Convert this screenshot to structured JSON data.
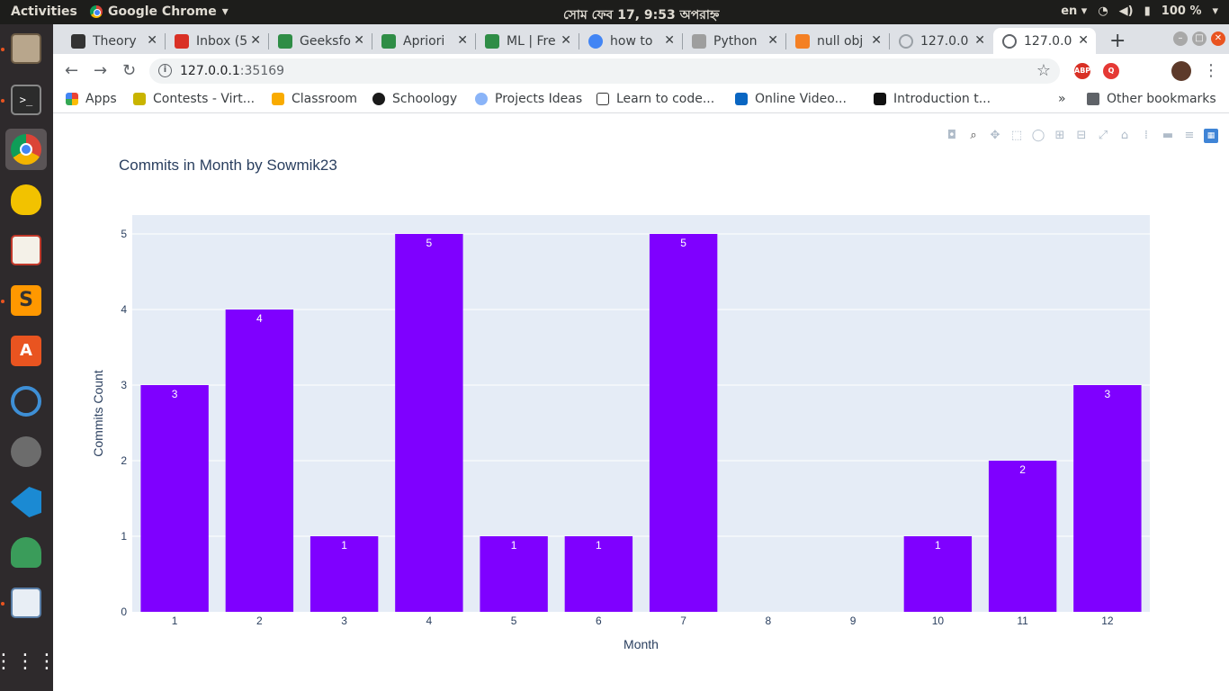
{
  "system": {
    "activities": "Activities",
    "app_name": "Google Chrome",
    "clock": "সোম ফেব 17,  9:53 অপরাহ্ন",
    "lang": "en",
    "battery": "100 %"
  },
  "tabs": [
    {
      "label": "Theory",
      "color": "#333333"
    },
    {
      "label": "Inbox (5",
      "color": "#d93025"
    },
    {
      "label": "Geeksfo",
      "color": "#2f8d46"
    },
    {
      "label": "Apriori",
      "color": "#2f8d46"
    },
    {
      "label": "ML | Fre",
      "color": "#2f8d46"
    },
    {
      "label": "how to",
      "color": "#4285f4"
    },
    {
      "label": "Python",
      "color": "#9e9e9e"
    },
    {
      "label": "null obj",
      "color": "#f48024"
    },
    {
      "label": "127.0.0",
      "color": "#9aa0a6"
    },
    {
      "label": "127.0.0",
      "color": "#5f6368"
    }
  ],
  "omnibox": {
    "host": "127.0.0.1",
    "port": ":35169"
  },
  "bookmarks": [
    {
      "label": "Apps",
      "color": "#ea4335"
    },
    {
      "label": "Contests - Virt...",
      "color": "#c9b400"
    },
    {
      "label": "Classroom",
      "color": "#f9ab00"
    },
    {
      "label": "Schoology",
      "color": "#1a1a1a"
    },
    {
      "label": "Projects Ideas",
      "color": "#8ab4f8"
    },
    {
      "label": "Learn to code...",
      "color": "#333333"
    },
    {
      "label": "Online Video...",
      "color": "#0a66c2"
    },
    {
      "label": "Introduction t...",
      "color": "#111111"
    },
    {
      "label": "Other bookmarks",
      "color": "#5f6368"
    }
  ],
  "chart_data": {
    "type": "bar",
    "title": "Commits in Month by Sowmik23",
    "xlabel": "Month",
    "ylabel": "Commits Count",
    "categories": [
      "1",
      "2",
      "3",
      "4",
      "5",
      "6",
      "7",
      "8",
      "9",
      "10",
      "11",
      "12"
    ],
    "values": [
      3,
      4,
      1,
      5,
      1,
      1,
      5,
      0,
      0,
      1,
      2,
      3
    ],
    "ylim": [
      0,
      5.25
    ],
    "yticks": [
      0,
      1,
      2,
      3,
      4,
      5
    ],
    "bar_color": "#7f00ff",
    "plot_bg": "#e5ecf6",
    "text_labels": true
  }
}
